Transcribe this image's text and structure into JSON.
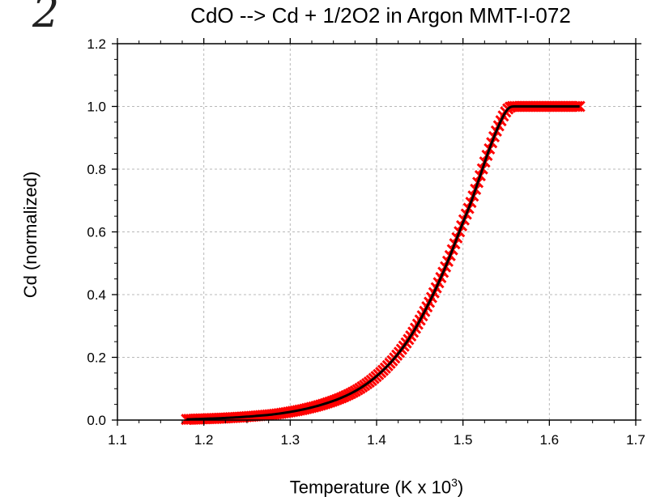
{
  "chart_data": {
    "type": "line",
    "title": "CdO --> Cd + 1/2O2 in Argon MMT-I-072",
    "xlabel": "Temperature  (K x 10",
    "xlabel_superscript": "3",
    "xlabel_suffix": ")",
    "ylabel": "Cd (normalized)",
    "corner_mark": "2",
    "xlim": [
      1.1,
      1.7
    ],
    "ylim": [
      0.0,
      1.2
    ],
    "x_ticks": [
      1.1,
      1.2,
      1.3,
      1.4,
      1.5,
      1.6,
      1.7
    ],
    "y_ticks": [
      0.0,
      0.2,
      0.4,
      0.6,
      0.8,
      1.0,
      1.2
    ],
    "x_tick_labels": [
      "1.1",
      "1.2",
      "1.3",
      "1.4",
      "1.5",
      "1.6",
      "1.7"
    ],
    "y_tick_labels": [
      "0.0",
      "0.2",
      "0.4",
      "0.6",
      "0.8",
      "1.0",
      "1.2"
    ],
    "grid": true,
    "grid_style": "dashed",
    "series": [
      {
        "style": "markers",
        "marker": "x",
        "color": "#ff0000",
        "x": [
          1.18,
          1.2,
          1.22,
          1.24,
          1.26,
          1.28,
          1.3,
          1.32,
          1.34,
          1.36,
          1.38,
          1.4,
          1.42,
          1.44,
          1.46,
          1.48,
          1.5,
          1.51,
          1.52,
          1.53,
          1.54,
          1.55,
          1.555,
          1.56,
          1.58,
          1.6,
          1.62,
          1.635
        ],
        "y": [
          0.002,
          0.004,
          0.006,
          0.009,
          0.013,
          0.018,
          0.026,
          0.037,
          0.052,
          0.072,
          0.1,
          0.14,
          0.195,
          0.27,
          0.37,
          0.49,
          0.63,
          0.7,
          0.78,
          0.86,
          0.93,
          0.985,
          0.998,
          1.0,
          1.0,
          1.0,
          1.0,
          1.0
        ]
      },
      {
        "style": "line",
        "color": "#000000",
        "x": [
          1.18,
          1.2,
          1.22,
          1.24,
          1.26,
          1.28,
          1.3,
          1.32,
          1.34,
          1.36,
          1.38,
          1.4,
          1.42,
          1.44,
          1.46,
          1.48,
          1.5,
          1.51,
          1.52,
          1.53,
          1.54,
          1.55,
          1.555,
          1.56,
          1.58,
          1.6,
          1.62,
          1.635
        ],
        "y": [
          0.002,
          0.004,
          0.006,
          0.009,
          0.013,
          0.018,
          0.026,
          0.037,
          0.052,
          0.072,
          0.1,
          0.14,
          0.195,
          0.27,
          0.37,
          0.49,
          0.63,
          0.7,
          0.78,
          0.86,
          0.93,
          0.985,
          0.998,
          1.0,
          1.0,
          1.0,
          1.0,
          1.0
        ]
      }
    ]
  }
}
